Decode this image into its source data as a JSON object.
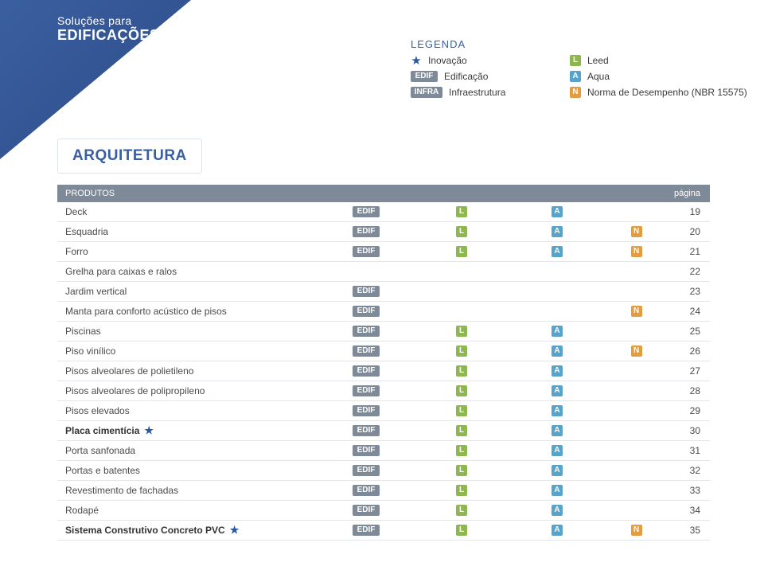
{
  "header": {
    "line1": "Soluções para",
    "line2": "EDIFICAÇÕES"
  },
  "legend": {
    "title": "LEGENDA",
    "items_left": [
      {
        "kind": "star",
        "label": "Inovação"
      },
      {
        "kind": "badge",
        "badge_text": "EDIF",
        "badge_class": "badge-edif",
        "label": "Edificação"
      },
      {
        "kind": "badge",
        "badge_text": "INFRA",
        "badge_class": "badge-infra",
        "label": "Infraestrutura"
      }
    ],
    "items_right": [
      {
        "kind": "badge",
        "badge_text": "L",
        "badge_class": "badge-l",
        "label": "Leed"
      },
      {
        "kind": "badge",
        "badge_text": "A",
        "badge_class": "badge-a",
        "label": "Aqua"
      },
      {
        "kind": "badge",
        "badge_text": "N",
        "badge_class": "badge-n",
        "label": "Norma de Desempenho (NBR 15575)"
      }
    ]
  },
  "section": {
    "title": "ARQUITETURA"
  },
  "table": {
    "header": {
      "products": "PRODUTOS",
      "page": "página"
    },
    "badge_labels": {
      "edif": "EDIF",
      "l": "L",
      "a": "A",
      "n": "N"
    },
    "rows": [
      {
        "name": "Deck",
        "star": false,
        "bold": false,
        "edif": true,
        "l": true,
        "a": true,
        "n": false,
        "page": "19"
      },
      {
        "name": "Esquadria",
        "star": false,
        "bold": false,
        "edif": true,
        "l": true,
        "a": true,
        "n": true,
        "page": "20"
      },
      {
        "name": "Forro",
        "star": false,
        "bold": false,
        "edif": true,
        "l": true,
        "a": true,
        "n": true,
        "page": "21"
      },
      {
        "name": "Grelha para caixas e ralos",
        "star": false,
        "bold": false,
        "edif": false,
        "l": false,
        "a": false,
        "n": false,
        "page": "22"
      },
      {
        "name": "Jardim vertical",
        "star": false,
        "bold": false,
        "edif": true,
        "l": false,
        "a": false,
        "n": false,
        "page": "23"
      },
      {
        "name": "Manta para conforto acústico de pisos",
        "star": false,
        "bold": false,
        "edif": true,
        "l": false,
        "a": false,
        "n": true,
        "page": "24"
      },
      {
        "name": "Piscinas",
        "star": false,
        "bold": false,
        "edif": true,
        "l": true,
        "a": true,
        "n": false,
        "page": "25"
      },
      {
        "name": "Piso vinílico",
        "star": false,
        "bold": false,
        "edif": true,
        "l": true,
        "a": true,
        "n": true,
        "page": "26"
      },
      {
        "name": "Pisos alveolares de polietileno",
        "star": false,
        "bold": false,
        "edif": true,
        "l": true,
        "a": true,
        "n": false,
        "page": "27"
      },
      {
        "name": "Pisos alveolares de polipropileno",
        "star": false,
        "bold": false,
        "edif": true,
        "l": true,
        "a": true,
        "n": false,
        "page": "28"
      },
      {
        "name": "Pisos elevados",
        "star": false,
        "bold": false,
        "edif": true,
        "l": true,
        "a": true,
        "n": false,
        "page": "29"
      },
      {
        "name": "Placa cimentícia",
        "star": true,
        "bold": true,
        "edif": true,
        "l": true,
        "a": true,
        "n": false,
        "page": "30"
      },
      {
        "name": "Porta sanfonada",
        "star": false,
        "bold": false,
        "edif": true,
        "l": true,
        "a": true,
        "n": false,
        "page": "31"
      },
      {
        "name": "Portas e batentes",
        "star": false,
        "bold": false,
        "edif": true,
        "l": true,
        "a": true,
        "n": false,
        "page": "32"
      },
      {
        "name": "Revestimento de fachadas",
        "star": false,
        "bold": false,
        "edif": true,
        "l": true,
        "a": true,
        "n": false,
        "page": "33"
      },
      {
        "name": "Rodapé",
        "star": false,
        "bold": false,
        "edif": true,
        "l": true,
        "a": true,
        "n": false,
        "page": "34"
      },
      {
        "name": "Sistema Construtivo Concreto PVC",
        "star": true,
        "bold": true,
        "edif": true,
        "l": true,
        "a": true,
        "n": true,
        "page": "35"
      }
    ]
  },
  "colors": {
    "brand_blue": "#3a5fa0",
    "header_gradient_from": "#3a5fa0",
    "header_gradient_to": "#2e4b87",
    "grey_badge": "#7e8a97",
    "leed_green": "#8fb750",
    "aqua_blue": "#58a3c9",
    "norma_orange": "#e59b3f",
    "row_border": "#e3e6ea",
    "text_dark": "#4a4a4a"
  }
}
